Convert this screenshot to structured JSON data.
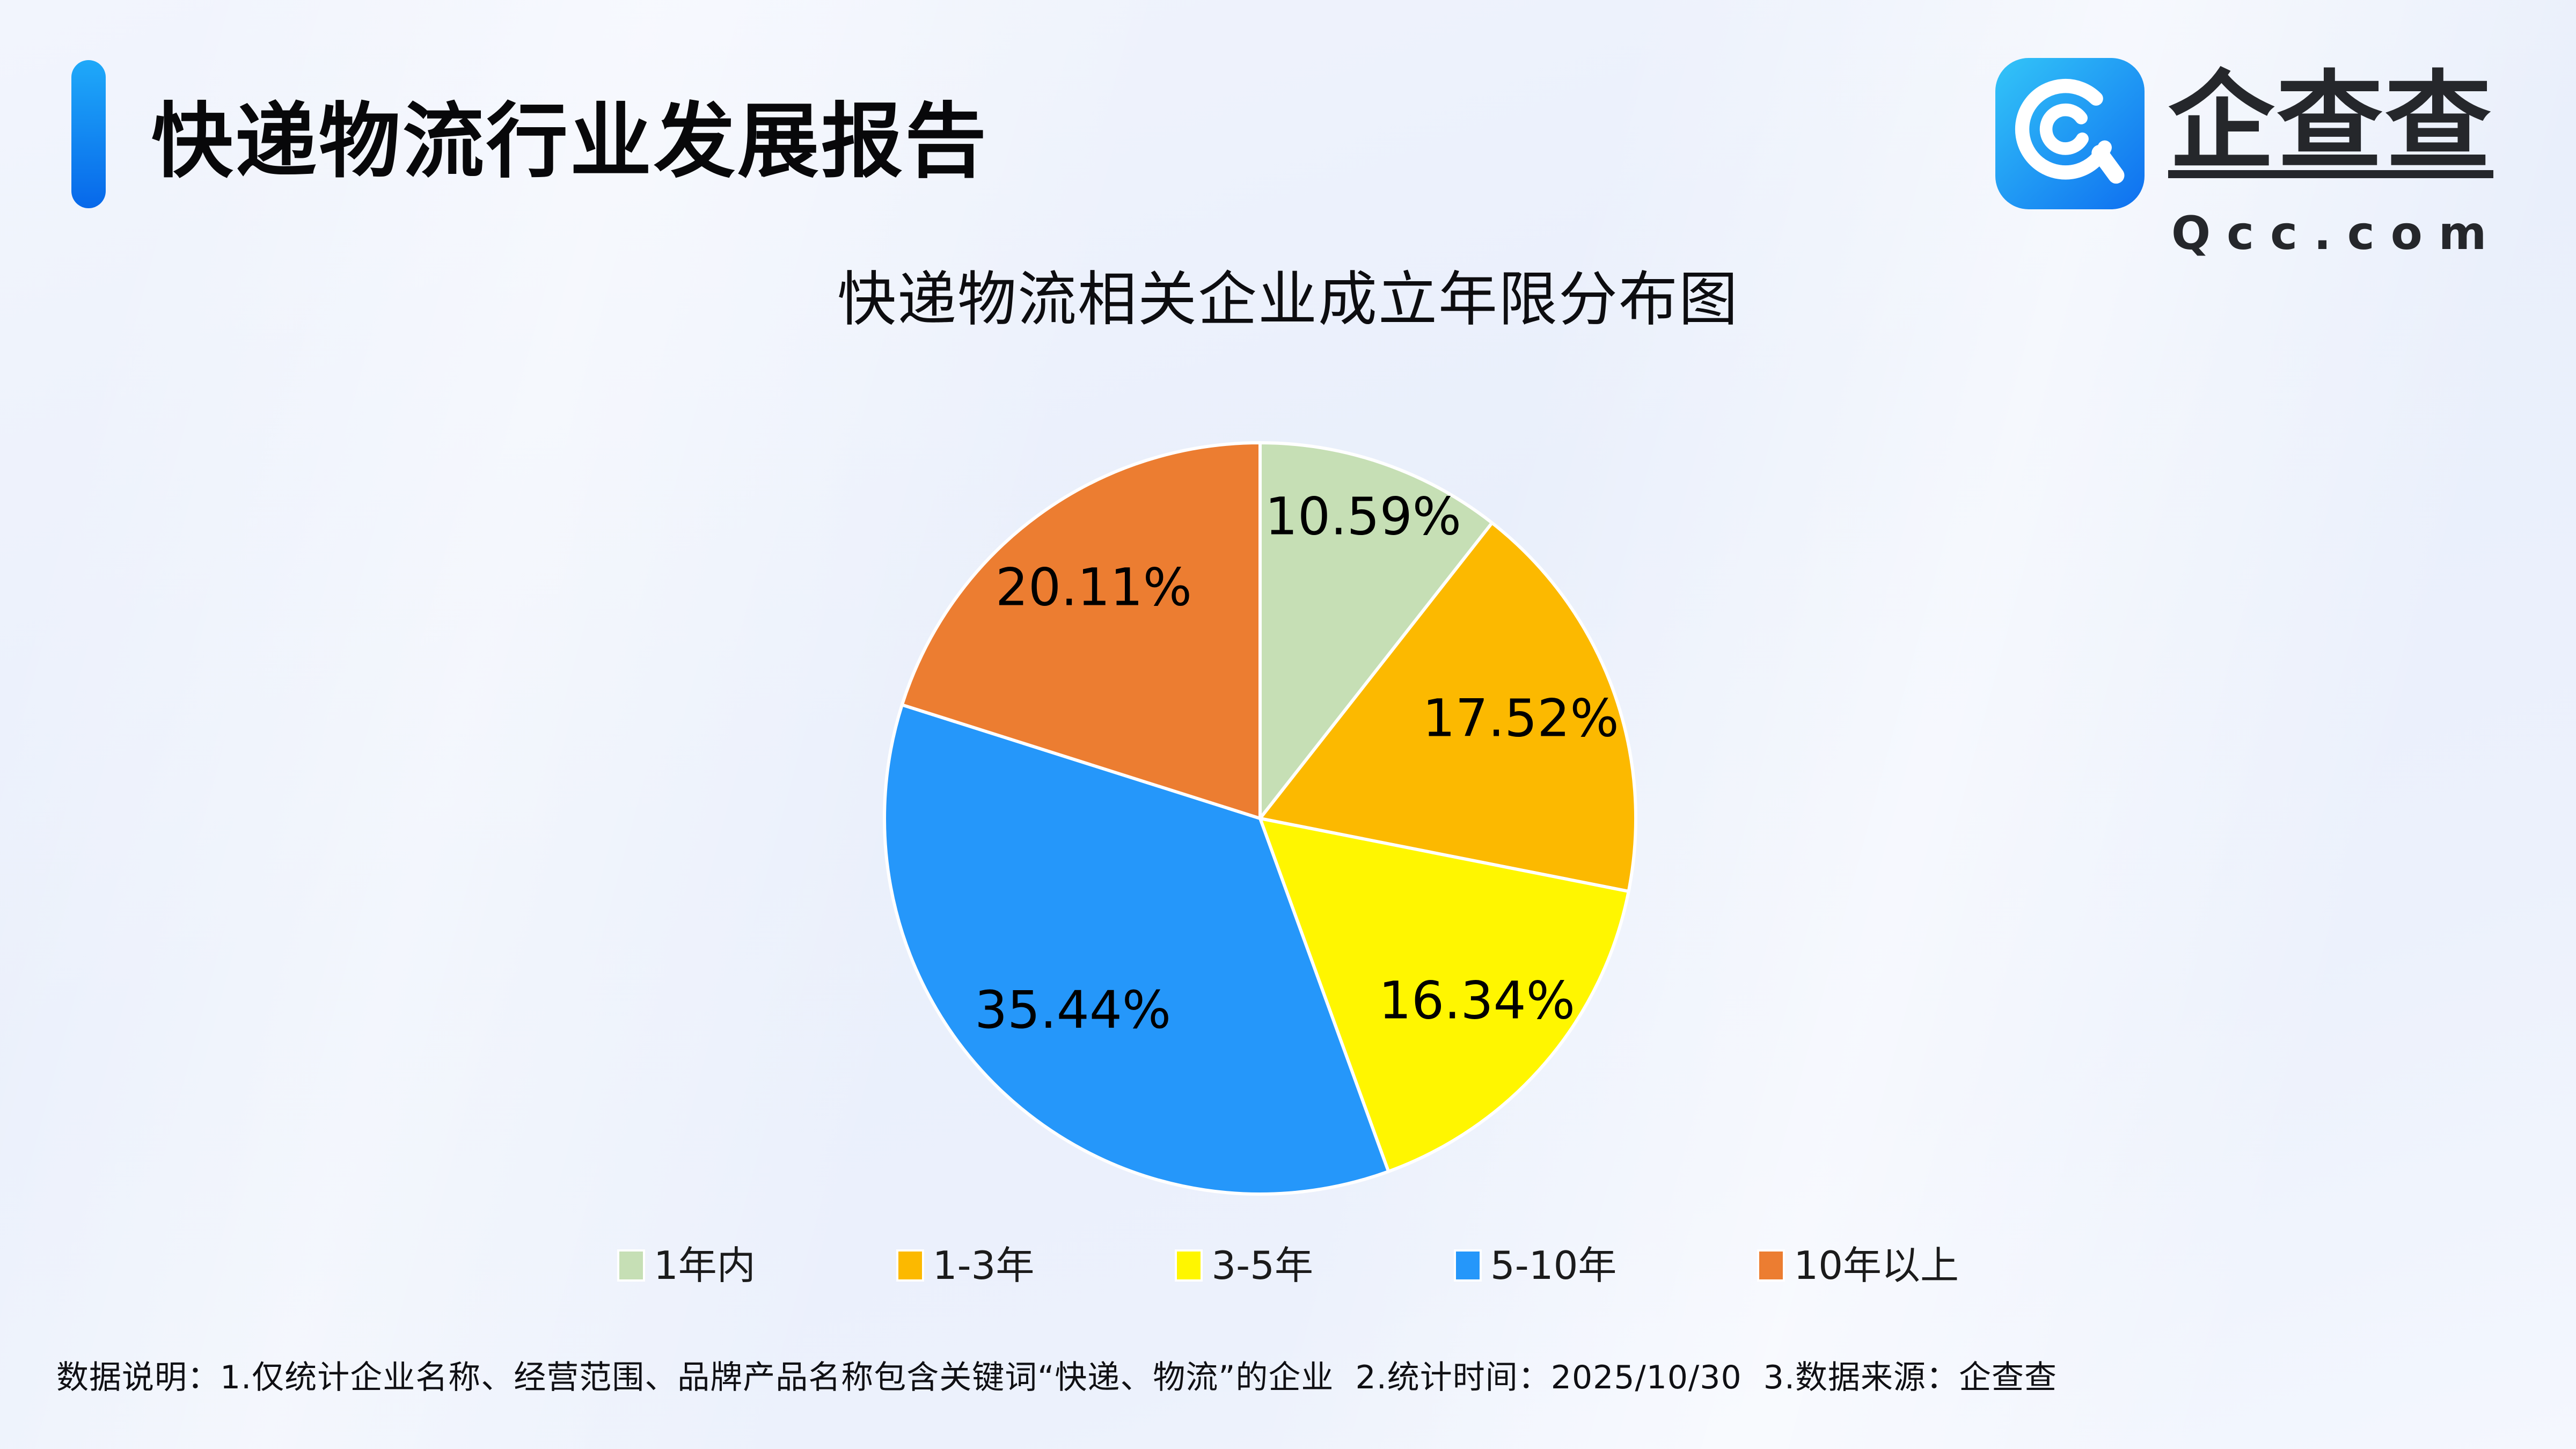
{
  "header": {
    "title": "快递物流行业发展报告"
  },
  "logo": {
    "brand_name": "企查查",
    "brand_domain": "Qcc.com"
  },
  "chart_data": {
    "type": "pie",
    "title": "快递物流相关企业成立年限分布图",
    "categories": [
      "1年内",
      "1-3年",
      "3-5年",
      "5-10年",
      "10年以上"
    ],
    "values": [
      10.59,
      17.52,
      16.34,
      35.44,
      20.11
    ],
    "labels": [
      "10.59%",
      "17.52%",
      "16.34%",
      "35.44%",
      "20.11%"
    ],
    "colors": [
      "#C6DFB5",
      "#FCB900",
      "#FFF600",
      "#2597FA",
      "#EC7D31"
    ],
    "unit": "percent",
    "start_angle_deg": 0,
    "direction": "clockwise",
    "legend_position": "bottom",
    "label_color": "#000000",
    "slice_border_color": "#FFFFFF",
    "label_radius_fraction": [
      0.84,
      0.74,
      0.76,
      0.72,
      0.75
    ]
  },
  "footnote": {
    "text": "数据说明：1.仅统计企业名称、经营范围、品牌产品名称包含关键词“快递、物流”的企业  2.统计时间：2025/10/30  3.数据来源：企查查"
  },
  "colors": {
    "accent_bar_top": "#1FA9F9",
    "accent_bar_bottom": "#0768EA",
    "background": "#ECF1FC",
    "title_text": "#08080A",
    "legend_text": "#1B1B1B",
    "footnote_text": "#101014"
  }
}
